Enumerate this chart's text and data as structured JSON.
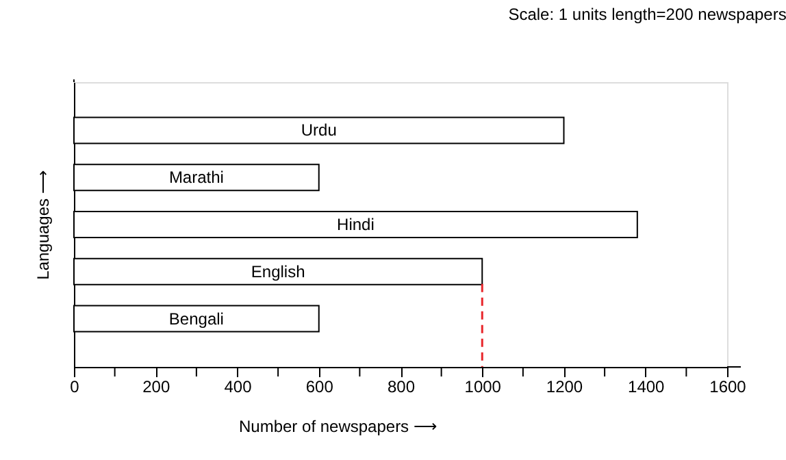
{
  "chart_data": {
    "type": "bar",
    "orientation": "horizontal",
    "tick_labels": "x",
    "annotations": [
      "Scale: 1 units length=200 newspapers"
    ],
    "xlabel": "Number of newspapers ⟶",
    "ylabel": "Languages ⟶",
    "categories": [
      "Urdu",
      "Marathi",
      "Hindi",
      "English",
      "Bengali"
    ],
    "values": [
      1200,
      600,
      1380,
      1000,
      600
    ],
    "color": "#ffffff",
    "xlim": [
      0,
      1600
    ],
    "xticks": [
      0,
      {
        "value": 100,
        "label": null
      },
      200,
      {
        "value": 300,
        "label": null
      },
      400,
      {
        "value": 500,
        "label": null
      },
      600,
      {
        "value": 700,
        "label": null
      },
      800,
      {
        "value": 900,
        "label": null
      },
      1000,
      {
        "value": 1100,
        "label": null
      },
      1200,
      {
        "value": 1300,
        "label": null
      },
      1400,
      {
        "value": 1500,
        "label": null
      },
      1600
    ],
    "ref_lines": [
      {
        "axis": "x",
        "value": 1000,
        "label": null,
        "color": "#e8262b",
        "line_style": "dashed"
      }
    ],
    "grid": false
  }
}
